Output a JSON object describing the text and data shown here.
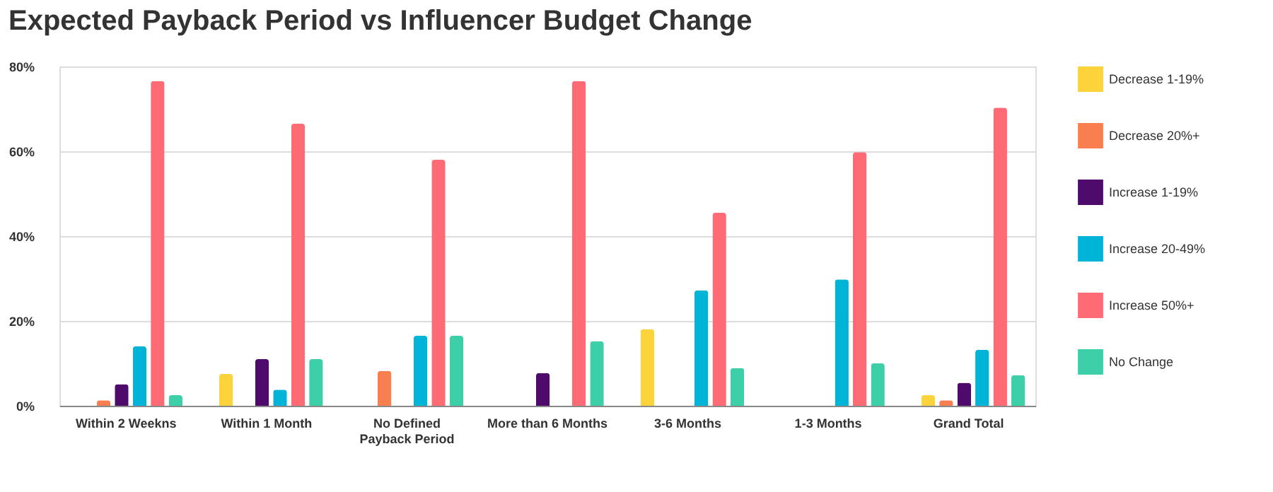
{
  "chart_data": {
    "type": "bar",
    "title": "Expected Payback Period vs Influencer Budget Change",
    "categories": [
      "Within 2 Weekns",
      "Within 1 Month",
      "No Defined\nPayback Period",
      "More than 6 Months",
      "3-6 Months",
      "1-3 Months",
      "Grand Total"
    ],
    "series": [
      {
        "name": "Decrease 1-19%",
        "color": "#fcd33a",
        "values": [
          null,
          7.5,
          null,
          null,
          18.1,
          null,
          2.5
        ]
      },
      {
        "name": "Decrease 20%+",
        "color": "#f97f51",
        "values": [
          1.3,
          null,
          8.2,
          null,
          null,
          null,
          1.3
        ]
      },
      {
        "name": "Increase 1-19%",
        "color": "#4e0b6b",
        "values": [
          5.1,
          11,
          null,
          7.7,
          null,
          null,
          5.4
        ]
      },
      {
        "name": "Increase 20-49%",
        "color": "#00b4d8",
        "values": [
          14,
          3.8,
          16.5,
          null,
          27.2,
          29.8,
          13.2
        ]
      },
      {
        "name": "Increase 50%+",
        "color": "#ff6b74",
        "values": [
          76.6,
          66.5,
          58,
          76.6,
          45.5,
          59.8,
          70.3
        ]
      },
      {
        "name": "No Change",
        "color": "#3dd0a8",
        "values": [
          2.5,
          11,
          16.5,
          15.2,
          8.9,
          10,
          7.2
        ]
      }
    ],
    "ylim": [
      0,
      80
    ],
    "yticks": [
      {
        "value": 0,
        "label": "0%"
      },
      {
        "value": 20,
        "label": "20%"
      },
      {
        "value": 40,
        "label": "40%"
      },
      {
        "value": 60,
        "label": "60%"
      },
      {
        "value": 80,
        "label": "80%"
      }
    ],
    "grid": "y",
    "legend": "right"
  }
}
